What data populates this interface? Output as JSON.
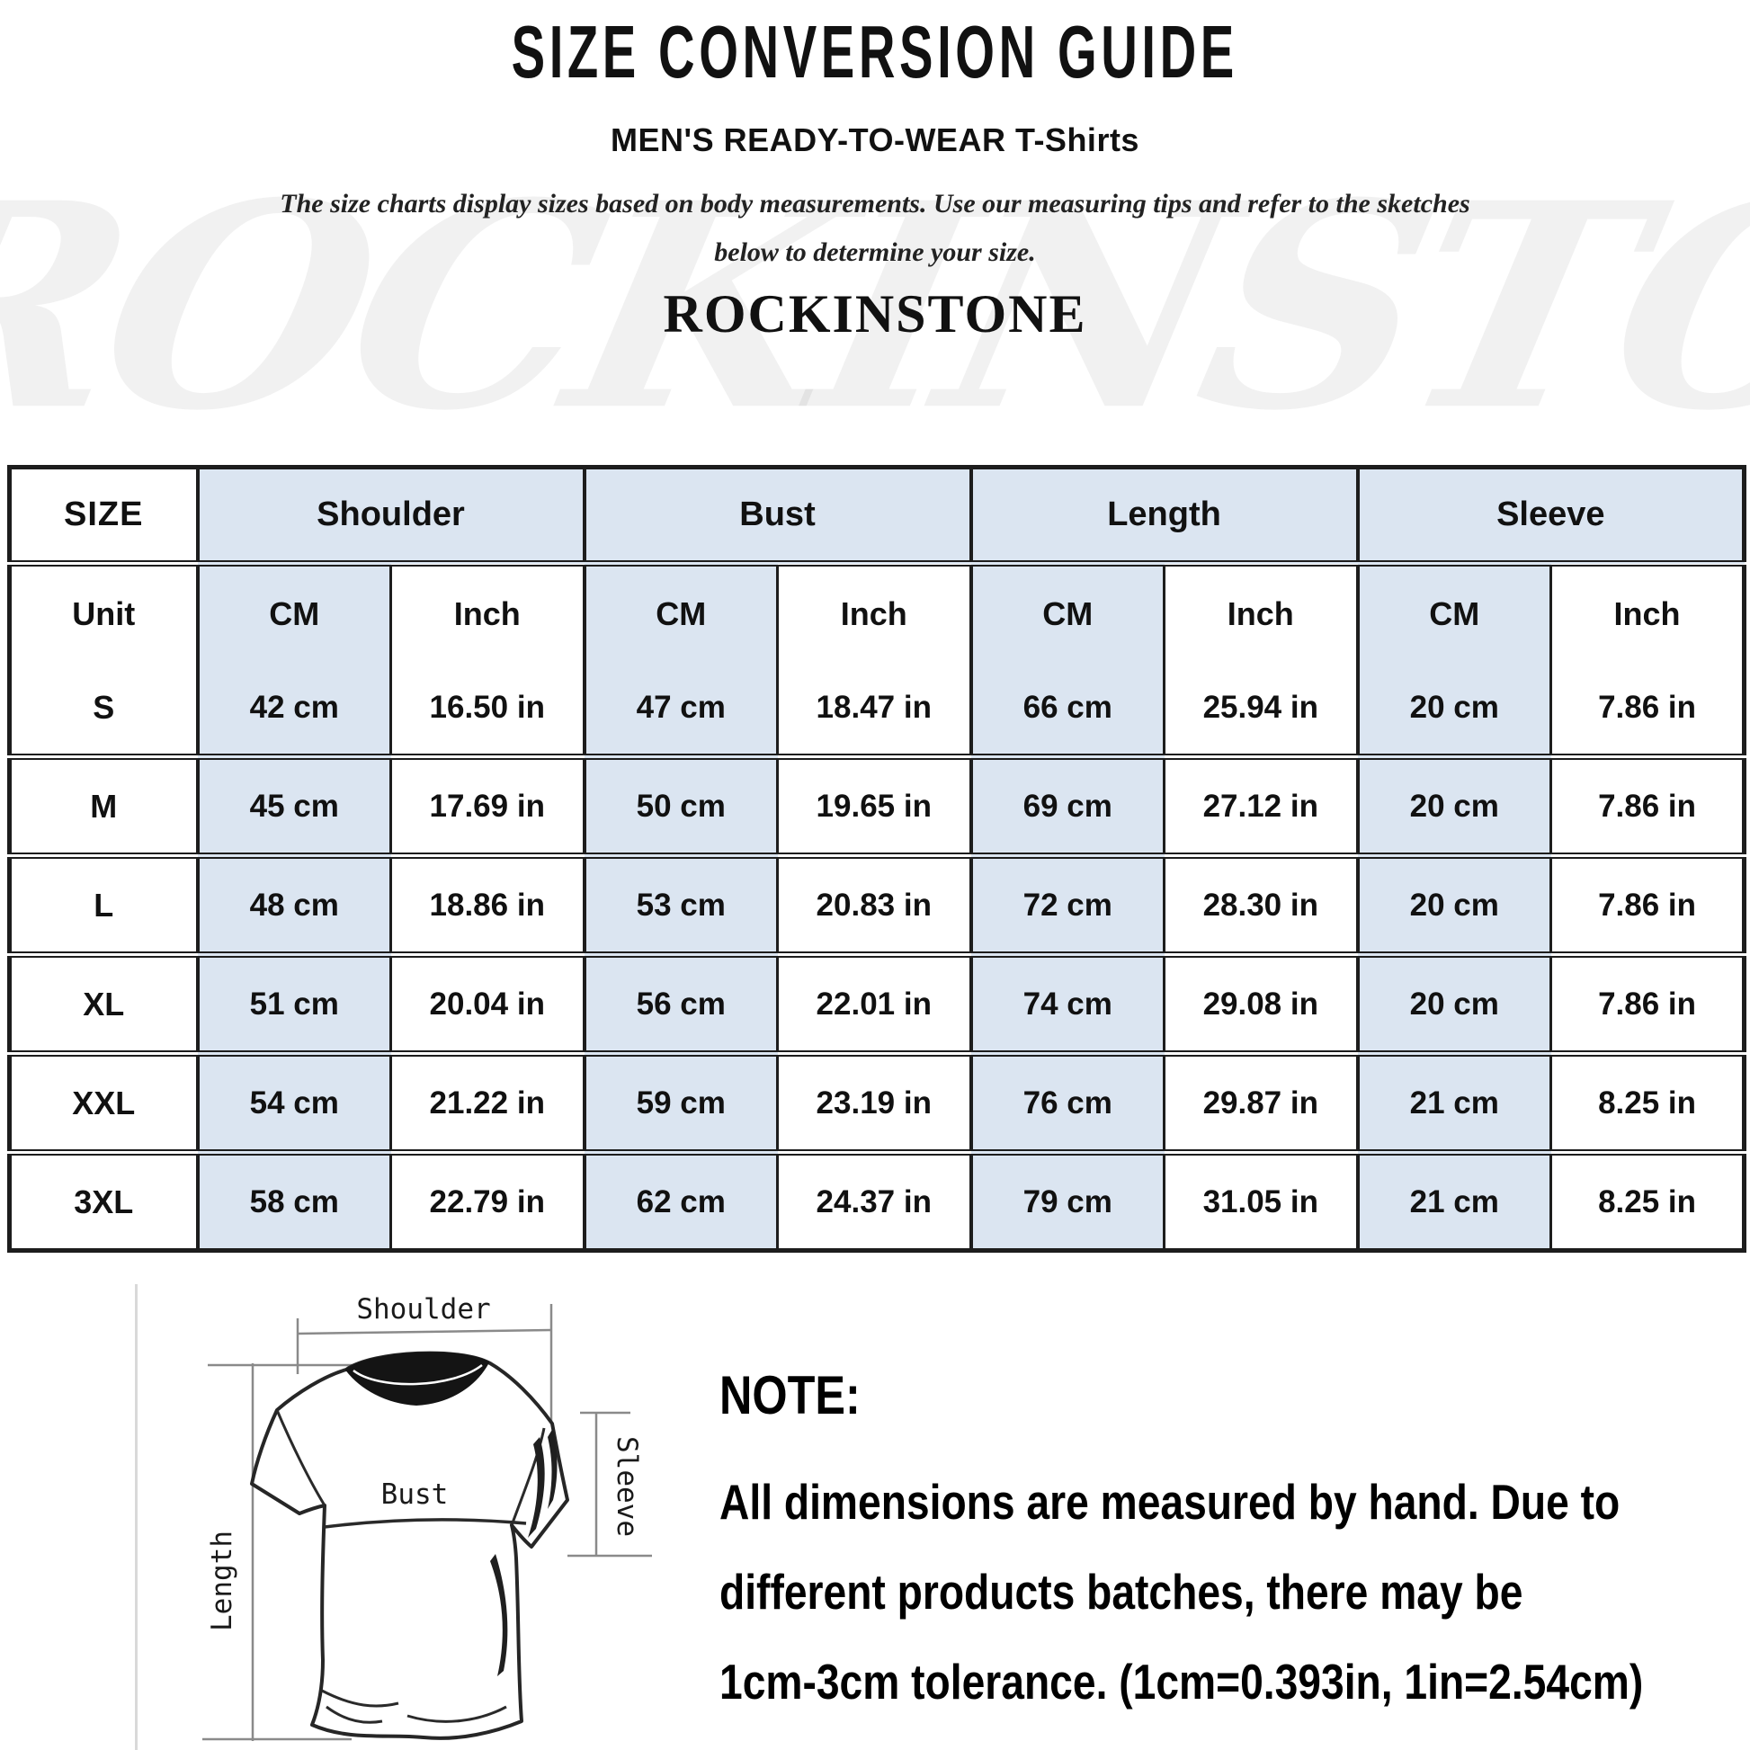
{
  "title": "SIZE CONVERSION GUIDE",
  "subtitle": "MEN'S READY-TO-WEAR T-Shirts",
  "description": {
    "line1": "The size charts display sizes based on body measurements.  Use our measuring tips and refer to the sketches",
    "line2": "below to determine your size."
  },
  "brand": "ROCKINSTONE",
  "watermark": "ROCKINSTONE",
  "colors": {
    "header_bg": "#dbe5f1",
    "border": "#1d1d1d",
    "sketch_line": "#8a8a8a"
  },
  "table": {
    "size_header": "SIZE",
    "unit_label": "Unit",
    "groups": [
      {
        "label": "Shoulder"
      },
      {
        "label": "Bust"
      },
      {
        "label": "Length"
      },
      {
        "label": "Sleeve"
      }
    ],
    "unit_cols": [
      "CM",
      "Inch",
      "CM",
      "Inch",
      "CM",
      "Inch",
      "CM",
      "Inch"
    ],
    "rows": [
      {
        "size": "S",
        "cells": [
          "42 cm",
          "16.50 in",
          "47 cm",
          "18.47 in",
          "66 cm",
          "25.94 in",
          "20 cm",
          "7.86 in"
        ]
      },
      {
        "size": "M",
        "cells": [
          "45 cm",
          "17.69 in",
          "50 cm",
          "19.65 in",
          "69 cm",
          "27.12 in",
          "20 cm",
          "7.86 in"
        ]
      },
      {
        "size": "L",
        "cells": [
          "48 cm",
          "18.86 in",
          "53 cm",
          "20.83 in",
          "72 cm",
          "28.30 in",
          "20 cm",
          "7.86 in"
        ]
      },
      {
        "size": "XL",
        "cells": [
          "51 cm",
          "20.04 in",
          "56 cm",
          "22.01 in",
          "74 cm",
          "29.08 in",
          "20 cm",
          "7.86 in"
        ]
      },
      {
        "size": "XXL",
        "cells": [
          "54 cm",
          "21.22 in",
          "59 cm",
          "23.19 in",
          "76 cm",
          "29.87 in",
          "21 cm",
          "8.25 in"
        ]
      },
      {
        "size": "3XL",
        "cells": [
          "58 cm",
          "22.79 in",
          "62 cm",
          "24.37 in",
          "79 cm",
          "31.05 in",
          "21 cm",
          "8.25 in"
        ]
      }
    ]
  },
  "sketch": {
    "shoulder_label": "Shoulder",
    "bust_label": "Bust",
    "length_label": "Length",
    "sleeve_label": "Sleeve"
  },
  "note": {
    "heading": "NOTE:",
    "lines": [
      "All dimensions are measured by hand. Due to",
      "different products batches, there may be",
      "1cm-3cm tolerance. (1cm=0.393in, 1in=2.54cm)"
    ]
  }
}
